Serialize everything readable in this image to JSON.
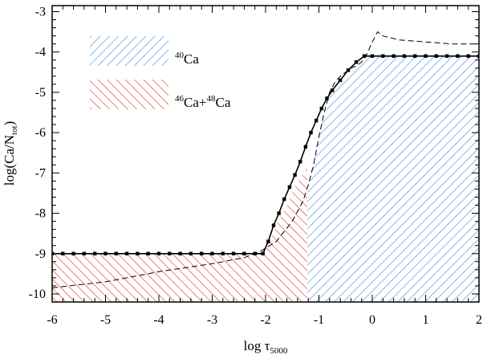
{
  "chart_data": {
    "type": "line",
    "xlabel": "log τ",
    "xlabel_sub": "5000",
    "ylabel": "log(Ca/N",
    "ylabel_sub": "tot",
    "ylabel_end": ")",
    "xlim": [
      -6,
      2
    ],
    "ylim": [
      -10.2,
      -2.85
    ],
    "x_ticks": [
      -6,
      -5,
      -4,
      -3,
      -2,
      -1,
      0,
      1,
      2
    ],
    "x_tick_labels": [
      "-6",
      "-5",
      "-4",
      "-3",
      "-2",
      "-1",
      "0",
      "1",
      "2"
    ],
    "y_ticks": [
      -10,
      -9,
      -8,
      -7,
      -6,
      -5,
      -4,
      -3
    ],
    "y_tick_labels": [
      "-10",
      "-9",
      "-8",
      "-7",
      "-6",
      "-5",
      "-4",
      "-3"
    ],
    "legend": [
      {
        "mass_a": "40",
        "elem_a": "Ca",
        "plus": "",
        "mass_b": "",
        "elem_b": "",
        "color": "#4a8fd9"
      },
      {
        "mass_a": "46",
        "elem_a": "Ca",
        "plus": "+",
        "mass_b": "48",
        "elem_b": "Ca",
        "color": "#e33b2e"
      }
    ],
    "regions": [
      {
        "name": "40Ca",
        "color": "#4a8fd9",
        "x_range": [
          -1.22,
          2
        ],
        "upper": [
          [
            -1.22,
            -7.55
          ],
          [
            -1.15,
            -6.95
          ],
          [
            -1.0,
            -6.0
          ],
          [
            -0.8,
            -5.1
          ],
          [
            -0.5,
            -4.65
          ],
          [
            -0.3,
            -4.35
          ],
          [
            -0.15,
            -4.1
          ],
          [
            2.0,
            -4.1
          ]
        ]
      },
      {
        "name": "46Ca+48Ca",
        "color": "#e33b2e",
        "x_range": [
          -6,
          -1.22
        ],
        "upper": [
          [
            -6,
            -9.0
          ],
          [
            -2.05,
            -9.0
          ],
          [
            -1.95,
            -8.8
          ],
          [
            -1.8,
            -8.3
          ],
          [
            -1.6,
            -7.8
          ],
          [
            -1.45,
            -7.35
          ],
          [
            -1.22,
            -6.85
          ]
        ]
      }
    ],
    "series": [
      {
        "style": "solid-marked",
        "x": [
          -6.0,
          -5.8,
          -5.6,
          -5.4,
          -5.2,
          -5.0,
          -4.8,
          -4.6,
          -4.4,
          -4.2,
          -4.0,
          -3.8,
          -3.6,
          -3.4,
          -3.2,
          -3.0,
          -2.8,
          -2.6,
          -2.4,
          -2.2,
          -2.05,
          -1.95,
          -1.85,
          -1.75,
          -1.65,
          -1.55,
          -1.45,
          -1.35,
          -1.25,
          -1.15,
          -1.05,
          -0.95,
          -0.85,
          -0.75,
          -0.6,
          -0.45,
          -0.3,
          -0.15,
          0.0,
          0.2,
          0.4,
          0.6,
          0.8,
          1.0,
          1.2,
          1.4,
          1.6,
          1.8,
          2.0
        ],
        "y": [
          -9.0,
          -9.0,
          -9.0,
          -9.0,
          -9.0,
          -9.0,
          -9.0,
          -9.0,
          -9.0,
          -9.0,
          -9.0,
          -9.0,
          -9.0,
          -9.0,
          -9.0,
          -9.0,
          -9.0,
          -9.0,
          -9.0,
          -9.0,
          -9.0,
          -8.7,
          -8.3,
          -8.0,
          -7.65,
          -7.35,
          -7.05,
          -6.72,
          -6.35,
          -6.0,
          -5.7,
          -5.4,
          -5.15,
          -4.95,
          -4.7,
          -4.45,
          -4.25,
          -4.1,
          -4.1,
          -4.1,
          -4.1,
          -4.1,
          -4.1,
          -4.1,
          -4.1,
          -4.1,
          -4.1,
          -4.1,
          -4.1
        ]
      },
      {
        "style": "dashed",
        "x": [
          -6.0,
          -5.0,
          -4.0,
          -3.0,
          -2.4,
          -2.1,
          -1.8,
          -1.5,
          -1.3,
          -1.2,
          -1.1,
          -1.0,
          -0.9,
          -0.8,
          -0.7,
          -0.6,
          -0.5,
          -0.4,
          -0.3,
          -0.2,
          -0.1,
          0.0,
          0.1,
          0.2,
          0.5,
          1.0,
          1.5,
          2.0
        ],
        "y": [
          -9.85,
          -9.7,
          -9.45,
          -9.25,
          -9.1,
          -8.95,
          -8.7,
          -8.2,
          -7.7,
          -7.3,
          -6.8,
          -6.1,
          -5.5,
          -5.0,
          -4.75,
          -4.6,
          -4.5,
          -4.4,
          -4.35,
          -4.25,
          -4.05,
          -3.75,
          -3.5,
          -3.6,
          -3.7,
          -3.75,
          -3.8,
          -3.8
        ]
      }
    ]
  }
}
